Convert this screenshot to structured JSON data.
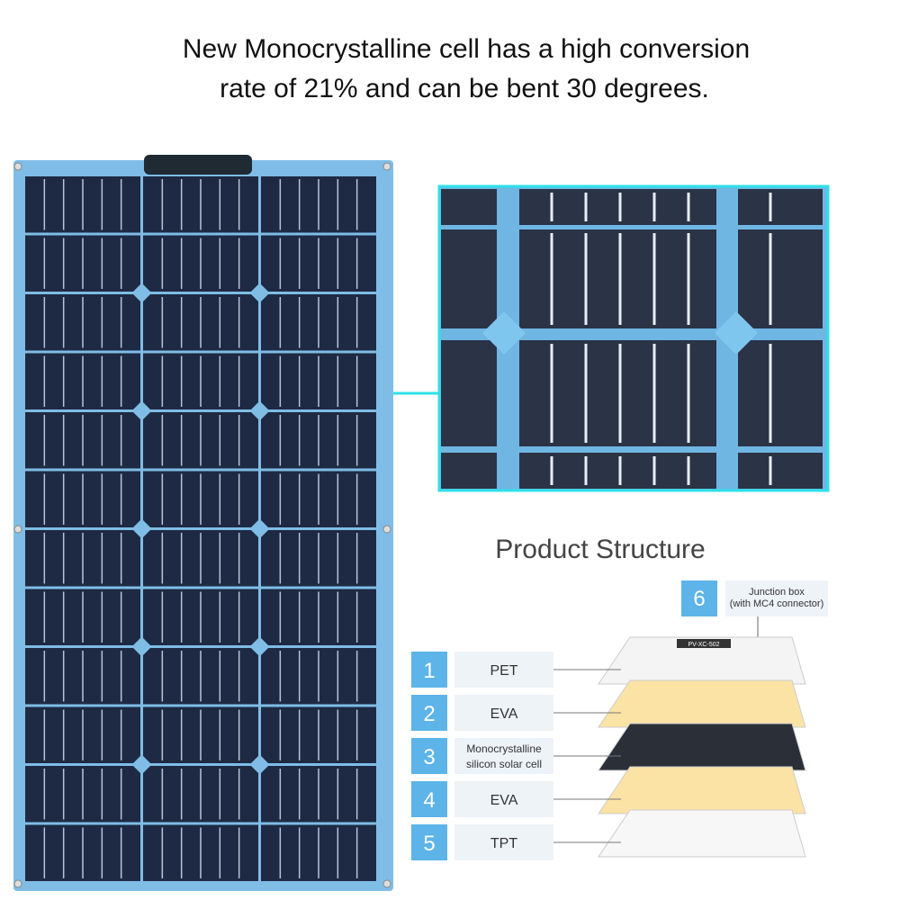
{
  "header": {
    "title_lines": [
      "New Monocrystalline  cell has a high conversion",
      "rate of 21% and can be bent 30 degrees."
    ]
  },
  "structure": {
    "title": "Product Structure",
    "junction": {
      "number": "6",
      "label_lines": [
        "Junction box",
        "(with MC4 connector)"
      ],
      "tag": "PV-XC-502"
    },
    "layers": [
      {
        "number": "1",
        "label_lines": [
          "PET"
        ]
      },
      {
        "number": "2",
        "label_lines": [
          "EVA"
        ]
      },
      {
        "number": "3",
        "label_lines": [
          "Monocrystalline",
          "silicon solar cell"
        ]
      },
      {
        "number": "4",
        "label_lines": [
          "EVA"
        ]
      },
      {
        "number": "5",
        "label_lines": [
          "TPT"
        ]
      }
    ]
  }
}
